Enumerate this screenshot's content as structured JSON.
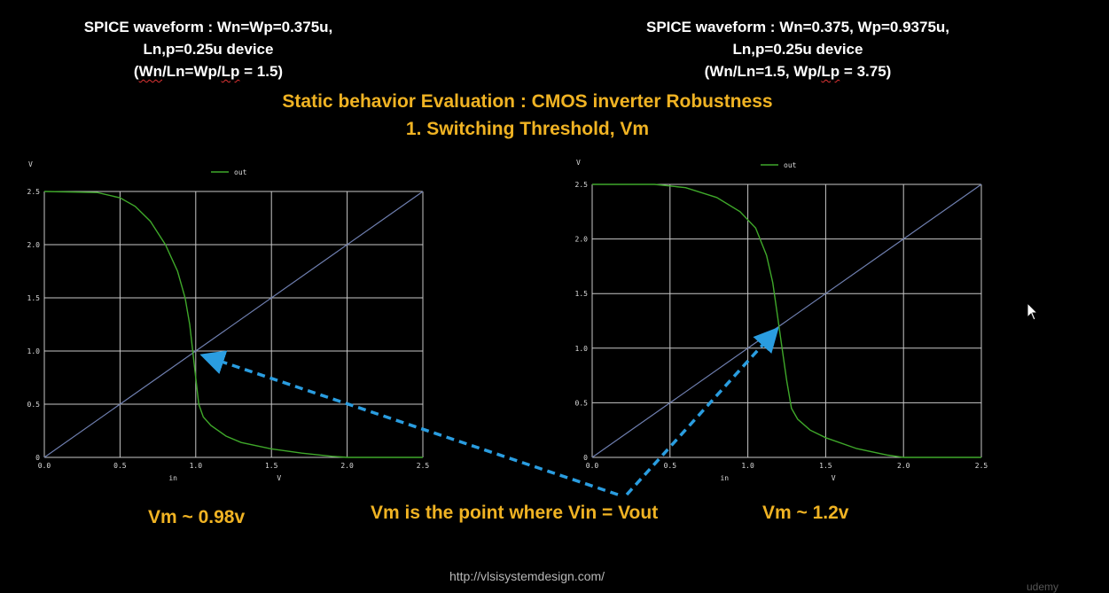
{
  "header_left": {
    "line1": "SPICE waveform : Wn=Wp=0.375u,",
    "line2": "Ln,p=0.25u device",
    "line3_open": "(",
    "line3_wn": "Wn",
    "line3_mid": "/Ln=Wp/",
    "line3_lp": "Lp",
    "line3_close": " = 1.5)"
  },
  "header_right": {
    "line1": "SPICE waveform : Wn=0.375, Wp=0.9375u,",
    "line2": "Ln,p=0.25u device",
    "line3_a": "(Wn/Ln=1.5, Wp/",
    "line3_lp": "Lp",
    "line3_b": " = 3.75)"
  },
  "title": {
    "line1": "Static behavior Evaluation : CMOS inverter Robustness",
    "line2": "1. Switching Threshold, Vm"
  },
  "annotations": {
    "vm_left": "Vm ~ 0.98v",
    "vm_right": "Vm ~ 1.2v",
    "center": "Vm is the point where Vin = Vout"
  },
  "footer": {
    "url": "http://vlsisystemdesign.com/",
    "watermark": "udemy"
  },
  "colors": {
    "accent": "#f0b323",
    "curve": "#3fa82a",
    "diagonal": "#6f7fb0",
    "grid": "#c8c8c8",
    "arrow": "#2a9de0"
  },
  "chart_data": [
    {
      "type": "line",
      "title": "",
      "xlabel": "in",
      "xunit": "V",
      "ylabel": "V",
      "xlim": [
        0,
        2.5
      ],
      "ylim": [
        0,
        2.5
      ],
      "xticks": [
        "0.0",
        "0.5",
        "1.0",
        "1.5",
        "2.0",
        "2.5"
      ],
      "yticks": [
        "0",
        "0.5",
        "1.0",
        "1.5",
        "2.0",
        "2.5"
      ],
      "grid": true,
      "legend": "top-center",
      "series": [
        {
          "name": "out",
          "x": [
            0,
            0.35,
            0.5,
            0.6,
            0.7,
            0.8,
            0.88,
            0.93,
            0.96,
            0.98,
            1.0,
            1.02,
            1.05,
            1.1,
            1.2,
            1.3,
            1.5,
            1.7,
            1.9,
            2.0,
            2.1,
            2.5
          ],
          "y": [
            2.5,
            2.49,
            2.44,
            2.36,
            2.22,
            2.0,
            1.75,
            1.5,
            1.25,
            1.0,
            0.75,
            0.5,
            0.38,
            0.3,
            0.2,
            0.14,
            0.08,
            0.04,
            0.01,
            0.0,
            0.0,
            0.0
          ]
        }
      ],
      "reference_line": {
        "x": [
          0,
          2.5
        ],
        "y": [
          0,
          2.5
        ]
      }
    },
    {
      "type": "line",
      "title": "",
      "xlabel": "in",
      "xunit": "V",
      "ylabel": "V",
      "xlim": [
        0,
        2.5
      ],
      "ylim": [
        0,
        2.5
      ],
      "xticks": [
        "0.0",
        "0.5",
        "1.0",
        "1.5",
        "2.0",
        "2.5"
      ],
      "yticks": [
        "0",
        "0.5",
        "1.0",
        "1.5",
        "2.0",
        "2.5"
      ],
      "grid": true,
      "legend": "top-center",
      "series": [
        {
          "name": "out",
          "x": [
            0,
            0.4,
            0.6,
            0.8,
            0.95,
            1.05,
            1.12,
            1.16,
            1.19,
            1.22,
            1.25,
            1.28,
            1.32,
            1.4,
            1.5,
            1.7,
            1.9,
            2.0,
            2.5
          ],
          "y": [
            2.5,
            2.5,
            2.47,
            2.38,
            2.25,
            2.1,
            1.85,
            1.6,
            1.3,
            1.0,
            0.7,
            0.45,
            0.35,
            0.25,
            0.18,
            0.08,
            0.02,
            0.0,
            0.0
          ]
        }
      ],
      "reference_line": {
        "x": [
          0,
          2.5
        ],
        "y": [
          0,
          2.5
        ]
      }
    }
  ]
}
